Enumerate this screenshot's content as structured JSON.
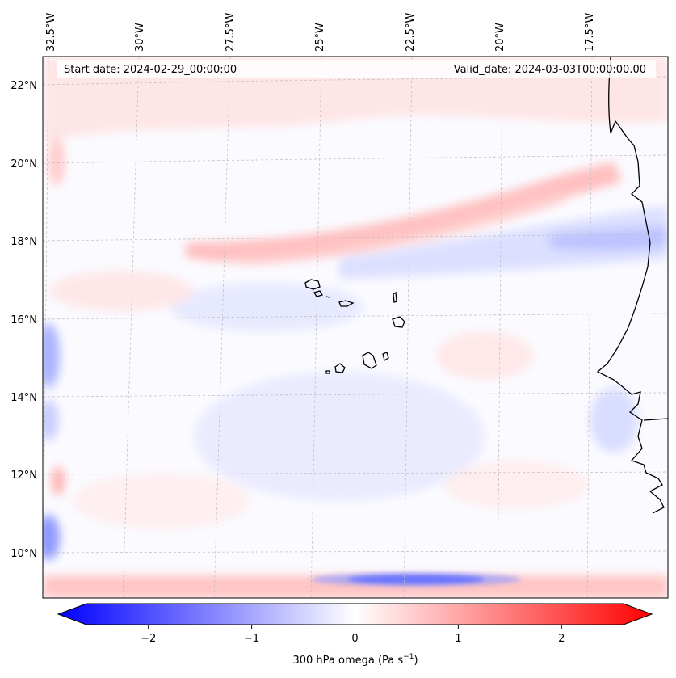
{
  "header": {
    "start_date": "Start date: 2024-02-29_00:00:00",
    "valid_date": "Valid_date: 2024-03-03T00:00:00.00"
  },
  "map": {
    "projection": "lambert-conformal",
    "lon_labels": [
      "32.5°W",
      "30°W",
      "27.5°W",
      "25°W",
      "22.5°W",
      "20°W",
      "17.5°W"
    ],
    "lat_labels": [
      "22°N",
      "20°N",
      "18°N",
      "16°N",
      "14°N",
      "12°N",
      "10°N"
    ],
    "gridlines": true,
    "field_colors": {
      "strong_negative": "#0000ff",
      "zero": "#ffffff",
      "strong_positive": "#ff0000"
    }
  },
  "colorbar": {
    "label": "300 hPa omega (Pa s",
    "label_superscript": "−1",
    "label_suffix": ")",
    "tick_labels": [
      "−2",
      "−1",
      "0",
      "1",
      "2"
    ],
    "ticks": [
      -2,
      -1,
      0,
      1,
      2
    ],
    "range": [
      -2.6,
      2.6
    ],
    "extend": "both",
    "cmap": "bwr"
  }
}
